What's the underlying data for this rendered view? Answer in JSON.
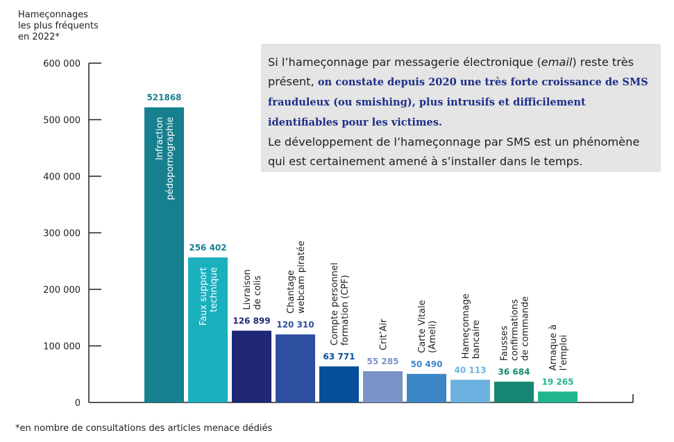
{
  "y_axis_title": [
    "Hameçonnages",
    "les plus fréquents",
    "en 2022*"
  ],
  "callout": {
    "part1": "Si l’hameçonnage par messagerie électronique (",
    "part1_italic": "email",
    "part2": ") reste très présent, ",
    "bold": "on constate depuis 2020 une très forte croissance de SMS frauduleux (ou smishing), plus intrusifs et difficilement identifiables pour les victimes.",
    "part3": "Le développement de l’hameçonnage par SMS est un phénomène qui est certainement amené à s’installer dans le temps."
  },
  "footnote": "*en nombre de consultations des articles menace dédiés",
  "chart_data": {
    "type": "bar",
    "ylim": [
      0,
      600000
    ],
    "yticks": [
      0,
      100000,
      200000,
      300000,
      400000,
      500000,
      600000
    ],
    "ytick_labels": [
      "0",
      "100 000",
      "200 000",
      "300 000",
      "400 000",
      "500 000",
      "600 000"
    ],
    "categories": [
      {
        "label": [
          "Infraction",
          "pédopornographie"
        ],
        "value": 521868,
        "value_label": "521868",
        "color": "#17808f",
        "value_color": "#17808f",
        "label_position": "inside",
        "label_color": "#ffffff"
      },
      {
        "label": [
          "Faux support",
          "technique"
        ],
        "value": 256402,
        "value_label": "256 402",
        "color": "#1ab0be",
        "value_color": "#17808f",
        "label_position": "inside",
        "label_color": "#ffffff"
      },
      {
        "label": [
          "Livraison",
          "de colis"
        ],
        "value": 126899,
        "value_label": "126 899",
        "color": "#1f2776",
        "value_color": "#1f2776",
        "label_position": "above",
        "label_color": "#1e1e1e"
      },
      {
        "label": [
          "Chantage",
          "webcam piratée"
        ],
        "value": 120310,
        "value_label": "120 310",
        "color": "#2e4f9f",
        "value_color": "#2e4f9f",
        "label_position": "above",
        "label_color": "#1e1e1e"
      },
      {
        "label": [
          "Compte personnel",
          "formation (CPF)"
        ],
        "value": 63771,
        "value_label": "63 771",
        "color": "#064e9a",
        "value_color": "#064e9a",
        "label_position": "above",
        "label_color": "#1e1e1e"
      },
      {
        "label": [
          "Crit’Air"
        ],
        "value": 55285,
        "value_label": "55 285",
        "color": "#7a93c9",
        "value_color": "#7a93c9",
        "label_position": "above",
        "label_color": "#1e1e1e"
      },
      {
        "label": [
          "Carte Vitale",
          "(Ameli)"
        ],
        "value": 50490,
        "value_label": "50 490",
        "color": "#3d86c6",
        "value_color": "#3d86c6",
        "label_position": "above",
        "label_color": "#1e1e1e"
      },
      {
        "label": [
          "Hameçonnage",
          "bancaire"
        ],
        "value": 40113,
        "value_label": "40 113",
        "color": "#6cb2e0",
        "value_color": "#6cb2e0",
        "label_position": "above",
        "label_color": "#1e1e1e"
      },
      {
        "label": [
          "Fausses",
          "confirmations",
          "de commande"
        ],
        "value": 36684,
        "value_label": "36 684",
        "color": "#158672",
        "value_color": "#158672",
        "label_position": "above",
        "label_color": "#1e1e1e"
      },
      {
        "label": [
          "Arnaque à",
          "l’emploi"
        ],
        "value": 19265,
        "value_label": "19 265",
        "color": "#20b58c",
        "value_color": "#20b58c",
        "label_position": "above",
        "label_color": "#1e1e1e"
      }
    ]
  }
}
